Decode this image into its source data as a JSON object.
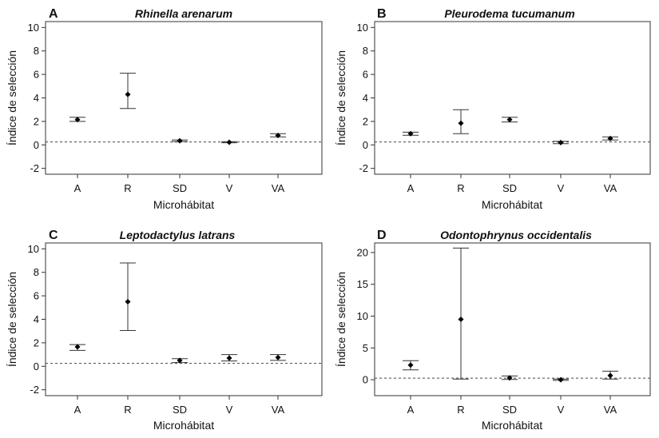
{
  "chart_data": [
    {
      "type": "errorbar",
      "panel": "A",
      "title": "Rhinella arenarum",
      "xlabel": "Microhábitat",
      "ylabel": "Índice de selección",
      "categories": [
        "A",
        "R",
        "SD",
        "V",
        "VA"
      ],
      "values": [
        2.15,
        4.3,
        0.35,
        0.22,
        0.8
      ],
      "lower": [
        2.0,
        3.1,
        0.28,
        0.18,
        0.68
      ],
      "upper": [
        2.35,
        6.1,
        0.42,
        0.27,
        0.95
      ],
      "ylim": [
        -2.5,
        10.5
      ],
      "yticks": [
        -2,
        0,
        2,
        4,
        6,
        8,
        10
      ],
      "reference_line": 0.25
    },
    {
      "type": "errorbar",
      "panel": "B",
      "title": "Pleurodema tucumanum",
      "xlabel": "Microhábitat",
      "ylabel": "Índice de selección",
      "categories": [
        "A",
        "R",
        "SD",
        "V",
        "VA"
      ],
      "values": [
        0.95,
        1.85,
        2.15,
        0.2,
        0.55
      ],
      "lower": [
        0.82,
        0.95,
        1.95,
        0.1,
        0.42
      ],
      "upper": [
        1.08,
        3.0,
        2.35,
        0.3,
        0.68
      ],
      "ylim": [
        -2.5,
        10.5
      ],
      "yticks": [
        -2,
        0,
        2,
        4,
        6,
        8,
        10
      ],
      "reference_line": 0.25
    },
    {
      "type": "errorbar",
      "panel": "C",
      "title": "Leptodactylus latrans",
      "xlabel": "Microhábitat",
      "ylabel": "Índice de selección",
      "categories": [
        "A",
        "R",
        "SD",
        "V",
        "VA"
      ],
      "values": [
        1.65,
        5.5,
        0.5,
        0.7,
        0.75
      ],
      "lower": [
        1.35,
        3.05,
        0.32,
        0.45,
        0.5
      ],
      "upper": [
        1.85,
        8.8,
        0.65,
        1.0,
        1.0
      ],
      "ylim": [
        -2.5,
        10.5
      ],
      "yticks": [
        -2,
        0,
        2,
        4,
        6,
        8,
        10
      ],
      "reference_line": 0.25
    },
    {
      "type": "errorbar",
      "panel": "D",
      "title": "Odontophrynus occidentalis",
      "xlabel": "Microhábitat",
      "ylabel": "Índice de selección",
      "categories": [
        "A",
        "R",
        "SD",
        "V",
        "VA"
      ],
      "values": [
        2.3,
        9.5,
        0.3,
        0.0,
        0.65
      ],
      "lower": [
        1.55,
        0.1,
        0.05,
        -0.1,
        0.1
      ],
      "upper": [
        3.0,
        20.7,
        0.6,
        0.1,
        1.35
      ],
      "ylim": [
        -2.5,
        21.5
      ],
      "yticks": [
        0,
        5,
        10,
        15,
        20
      ],
      "reference_line": 0.25
    }
  ]
}
